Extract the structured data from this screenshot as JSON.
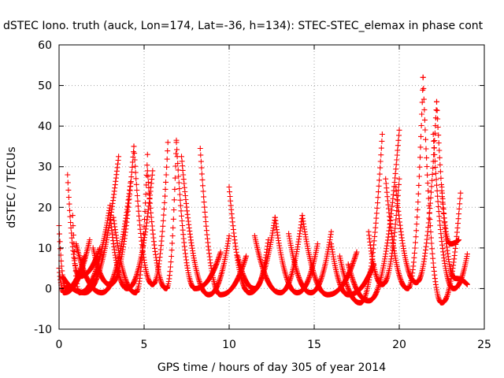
{
  "chart_data": {
    "type": "scatter",
    "title": "dSTEC Iono. truth (auck, Lon=174, Lat=-36, h=134): STEC-STEC_elemax in phase cont",
    "xlabel": "GPS time / hours of day 305 of year 2014",
    "ylabel": "dSTEC  / TECUs",
    "xlim": [
      0,
      25
    ],
    "ylim": [
      -10,
      60
    ],
    "x_ticks": [
      0,
      5,
      10,
      15,
      20,
      25
    ],
    "y_ticks": [
      -10,
      0,
      10,
      20,
      30,
      40,
      50,
      60
    ],
    "grid": true,
    "marker": "+",
    "series_color": "#ff0000",
    "arcs": [
      {
        "start": 0.0,
        "min_t": 0.4,
        "end": 1.5,
        "start_val": 15.5,
        "min_val": 0.0,
        "end_val": 8.0
      },
      {
        "start": 0.0,
        "min_t": 0.3,
        "end": 1.8,
        "start_val": 5.0,
        "min_val": -1.0,
        "end_val": 12.0
      },
      {
        "start": 0.5,
        "min_t": 1.2,
        "end": 2.4,
        "start_val": 28.0,
        "min_val": 3.0,
        "end_val": 10.0
      },
      {
        "start": 0.8,
        "min_t": 1.2,
        "end": 3.0,
        "start_val": 18.0,
        "min_val": -1.0,
        "end_val": 20.5
      },
      {
        "start": 0.2,
        "min_t": 1.5,
        "end": 3.5,
        "start_val": 3.0,
        "min_val": -1.0,
        "end_val": 32.5
      },
      {
        "start": 1.0,
        "min_t": 2.5,
        "end": 4.2,
        "start_val": 11.0,
        "min_val": -1.0,
        "end_val": 26.0
      },
      {
        "start": 2.0,
        "min_t": 3.0,
        "end": 4.4,
        "start_val": 10.0,
        "min_val": 1.0,
        "end_val": 35.0
      },
      {
        "start": 3.0,
        "min_t": 4.0,
        "end": 5.5,
        "start_val": 18.0,
        "min_val": 0.0,
        "end_val": 29.0
      },
      {
        "start": 3.2,
        "min_t": 4.5,
        "end": 5.2,
        "start_val": 17.5,
        "min_val": -1.0,
        "end_val": 33.0
      },
      {
        "start": 4.4,
        "min_t": 5.5,
        "end": 6.4,
        "start_val": 35.0,
        "min_val": 1.0,
        "end_val": 36.0
      },
      {
        "start": 5.2,
        "min_t": 6.3,
        "end": 6.9,
        "start_val": 29.0,
        "min_val": 0.0,
        "end_val": 36.5
      },
      {
        "start": 6.9,
        "min_t": 8.0,
        "end": 9.5,
        "start_val": 36.0,
        "min_val": 0.0,
        "end_val": 9.0
      },
      {
        "start": 7.2,
        "min_t": 8.8,
        "end": 10.0,
        "start_val": 32.5,
        "min_val": -1.5,
        "end_val": 13.0
      },
      {
        "start": 8.3,
        "min_t": 9.5,
        "end": 11.0,
        "start_val": 34.5,
        "min_val": -1.5,
        "end_val": 8.0
      },
      {
        "start": 10.0,
        "min_t": 11.2,
        "end": 12.7,
        "start_val": 25.0,
        "min_val": -1.0,
        "end_val": 17.5
      },
      {
        "start": 10.5,
        "min_t": 11.5,
        "end": 12.3,
        "start_val": 8.0,
        "min_val": 0.0,
        "end_val": 12.0
      },
      {
        "start": 11.5,
        "min_t": 13.0,
        "end": 14.3,
        "start_val": 13.0,
        "min_val": -1.0,
        "end_val": 18.0
      },
      {
        "start": 12.7,
        "min_t": 14.0,
        "end": 15.2,
        "start_val": 17.5,
        "min_val": -1.0,
        "end_val": 11.0
      },
      {
        "start": 13.5,
        "min_t": 14.8,
        "end": 16.0,
        "start_val": 13.5,
        "min_val": -1.0,
        "end_val": 14.0
      },
      {
        "start": 14.3,
        "min_t": 15.8,
        "end": 17.5,
        "start_val": 18.0,
        "min_val": -1.5,
        "end_val": 9.0
      },
      {
        "start": 16.0,
        "min_t": 17.0,
        "end": 18.5,
        "start_val": 11.0,
        "min_val": -1.5,
        "end_val": 6.0
      },
      {
        "start": 16.5,
        "min_t": 17.7,
        "end": 19.0,
        "start_val": 8.0,
        "min_val": -3.5,
        "end_val": 38.0
      },
      {
        "start": 17.0,
        "min_t": 18.2,
        "end": 20.0,
        "start_val": 6.0,
        "min_val": -3.0,
        "end_val": 39.0
      },
      {
        "start": 18.2,
        "min_t": 19.0,
        "end": 20.0,
        "start_val": 14.0,
        "min_val": 1.0,
        "end_val": 27.0
      },
      {
        "start": 19.2,
        "min_t": 20.5,
        "end": 21.4,
        "start_val": 27.0,
        "min_val": 0.0,
        "end_val": 52.0
      },
      {
        "start": 19.8,
        "min_t": 21.0,
        "end": 22.2,
        "start_val": 25.0,
        "min_val": 1.5,
        "end_val": 46.0
      },
      {
        "start": 21.4,
        "min_t": 22.5,
        "end": 23.6,
        "start_val": 52.0,
        "min_val": -3.5,
        "end_val": 23.5
      },
      {
        "start": 22.0,
        "min_t": 23.2,
        "end": 24.0,
        "start_val": 38.0,
        "min_val": 0.0,
        "end_val": 8.5
      },
      {
        "start": 22.2,
        "min_t": 23.3,
        "end": 24.0,
        "start_val": 46.0,
        "min_val": 2.5,
        "end_val": 1.0
      },
      {
        "start": 22.5,
        "min_t": 23.0,
        "end": 23.5,
        "start_val": 25.0,
        "min_val": 11.0,
        "end_val": 12.0
      }
    ]
  }
}
